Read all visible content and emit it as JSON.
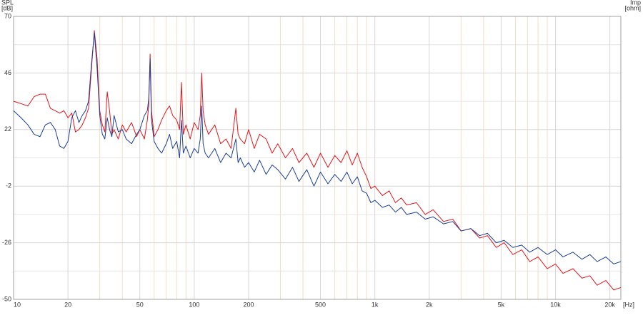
{
  "chart_data": {
    "type": "line",
    "ylabel": "SPL",
    "yunit": "[dB]",
    "y2label": "Imp",
    "y2unit": "[ohm]",
    "xunit": "[Hz]",
    "log_x": true,
    "grid": true,
    "xlim": [
      10,
      23000
    ],
    "xticks": [
      10,
      20,
      50,
      100,
      200,
      500,
      {
        "value": 1000,
        "label": "1k"
      },
      {
        "value": 2000,
        "label": "2k"
      },
      {
        "value": 5000,
        "label": "5k"
      },
      {
        "value": 10000,
        "label": "10k"
      },
      {
        "value": 20000,
        "label": "20k"
      }
    ],
    "x_minor_gridlines": [
      30,
      40,
      60,
      70,
      80,
      90,
      300,
      400,
      600,
      700,
      800,
      900,
      3000,
      4000,
      6000,
      7000,
      8000,
      9000
    ],
    "ylim": [
      -50,
      70
    ],
    "yticks": [
      70,
      46,
      22,
      -2,
      -26,
      -50
    ],
    "y_minor_gridlines": [
      58,
      34,
      10,
      -14,
      -38
    ],
    "x": [
      10,
      11,
      12,
      13,
      14,
      15,
      16,
      17,
      18,
      19,
      20,
      21,
      22,
      23,
      24,
      25,
      26,
      27,
      28,
      29,
      30,
      31,
      32,
      33,
      34,
      35,
      36,
      38,
      40,
      42,
      45,
      48,
      50,
      53,
      55,
      56,
      57,
      58,
      60,
      63,
      66,
      70,
      73,
      76,
      80,
      83,
      85,
      87,
      90,
      95,
      100,
      105,
      108,
      110,
      112,
      115,
      120,
      130,
      140,
      150,
      160,
      170,
      175,
      180,
      190,
      200,
      215,
      230,
      250,
      270,
      290,
      320,
      350,
      380,
      420,
      460,
      500,
      550,
      600,
      650,
      700,
      750,
      800,
      850,
      900,
      950,
      1000,
      1100,
      1200,
      1300,
      1400,
      1500,
      1700,
      1900,
      2100,
      2400,
      2700,
      3000,
      3400,
      3800,
      4200,
      4700,
      5200,
      5800,
      6500,
      7200,
      8000,
      9000,
      10000,
      11000,
      12500,
      14000,
      15500,
      17000,
      19000,
      21000,
      23000
    ],
    "series": [
      {
        "color": "#e3161c",
        "values": [
          34,
          33,
          32,
          36,
          37,
          37,
          31,
          30,
          29,
          30,
          27,
          29,
          21,
          22,
          24,
          27,
          31,
          48,
          64,
          52,
          30,
          24,
          21,
          38,
          30,
          20,
          22,
          18,
          24,
          21,
          25,
          19,
          22,
          18,
          26,
          32,
          54,
          30,
          19,
          22,
          26,
          30,
          32,
          28,
          26,
          22,
          42,
          20,
          24,
          18,
          25,
          22,
          28,
          46,
          30,
          24,
          20,
          24,
          16,
          18,
          14,
          31,
          20,
          18,
          16,
          22,
          14,
          20,
          18,
          12,
          16,
          10,
          14,
          8,
          12,
          6,
          12,
          6,
          11,
          8,
          13,
          7,
          12,
          6,
          2,
          -3,
          -2,
          -6,
          -4,
          -9,
          -7,
          -10,
          -9,
          -14,
          -12,
          -17,
          -16,
          -21,
          -20,
          -24,
          -23,
          -28,
          -26,
          -31,
          -29,
          -34,
          -32,
          -37,
          -35,
          -39,
          -37,
          -41,
          -40,
          -44,
          -42,
          -46,
          -45
        ]
      },
      {
        "color": "#1c3f94",
        "values": [
          30,
          27,
          24,
          20,
          19,
          24,
          25,
          22,
          15,
          14,
          17,
          27,
          30,
          25,
          28,
          30,
          34,
          50,
          63,
          48,
          28,
          20,
          18,
          27,
          22,
          19,
          28,
          21,
          22,
          18,
          16,
          20,
          22,
          28,
          30,
          35,
          52,
          26,
          17,
          14,
          12,
          16,
          20,
          14,
          17,
          10,
          26,
          12,
          15,
          10,
          14,
          12,
          18,
          32,
          16,
          12,
          10,
          14,
          8,
          12,
          10,
          18,
          8,
          10,
          6,
          8,
          4,
          9,
          3,
          7,
          5,
          1,
          6,
          0,
          5,
          -2,
          4,
          -1,
          3,
          0,
          4,
          -1,
          2,
          -4,
          -5,
          -9,
          -8,
          -11,
          -10,
          -13,
          -11,
          -14,
          -13,
          -16,
          -15,
          -18,
          -17,
          -21,
          -20,
          -23,
          -22,
          -26,
          -25,
          -28,
          -27,
          -30,
          -28,
          -31,
          -29,
          -32,
          -30,
          -33,
          -31,
          -34,
          -32,
          -35,
          -34
        ]
      }
    ]
  }
}
